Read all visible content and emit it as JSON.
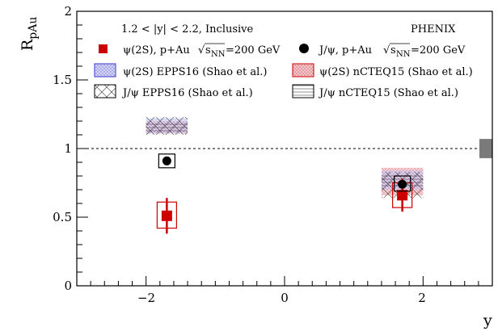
{
  "chart_data": {
    "type": "scatter",
    "ylabel": "R",
    "ylabel_sub": "pAu",
    "xlabel": "y",
    "xlim": [
      -3.0,
      3.0
    ],
    "ylim": [
      0,
      2
    ],
    "xticks": [
      "−2",
      "0",
      "2"
    ],
    "yticks": [
      "0",
      "0.5",
      "1",
      "1.5",
      "2"
    ],
    "reference_line_y": 1,
    "global_uncertainty_box": {
      "y_low": 0.93,
      "y_high": 1.07
    },
    "annotations": {
      "selection": "1.2 < |y| < 2.2, Inclusive",
      "experiment": "PHENIX"
    },
    "legend": {
      "psi2s_data": {
        "pre": "ψ(2S), p+Au ",
        "sqrt": "s",
        "sub": "NN",
        "post": "=200 GeV"
      },
      "jpsi_data": {
        "pre": "J/ψ, p+Au ",
        "sqrt": "s",
        "sub": "NN",
        "post": "=200 GeV"
      },
      "psi2s_epps16": "ψ(2S) EPPS16 (Shao et al.)",
      "psi2s_ncteq15": "ψ(2S) nCTEQ15 (Shao et al.)",
      "jpsi_epps16": "J/ψ EPPS16 (Shao et al.)",
      "jpsi_ncteq15": "J/ψ nCTEQ15 (Shao et al.)"
    },
    "series": [
      {
        "name": "ψ(2S), p+Au",
        "color": "#cc0000",
        "marker": "square",
        "points": [
          {
            "x": -1.7,
            "y": 0.51,
            "stat": 0.13,
            "sys_low": 0.42,
            "sys_high": 0.61
          },
          {
            "x": 1.7,
            "y": 0.66,
            "stat": 0.12,
            "sys_low": 0.57,
            "sys_high": 0.75
          }
        ]
      },
      {
        "name": "J/ψ, p+Au",
        "color": "#000000",
        "marker": "circle",
        "points": [
          {
            "x": -1.7,
            "y": 0.91,
            "stat": 0.01,
            "sys_low": 0.86,
            "sys_high": 0.96
          },
          {
            "x": 1.7,
            "y": 0.74,
            "stat": 0.01,
            "sys_low": 0.69,
            "sys_high": 0.8
          }
        ]
      }
    ],
    "model_bands": [
      {
        "name": "ψ(2S) nCTEQ15 (Shao et al.)",
        "pattern": "red-dots",
        "bands": [
          {
            "x_low": -2.0,
            "x_high": -1.4,
            "y_low": 1.11,
            "y_high": 1.2
          },
          {
            "x_low": 1.4,
            "x_high": 2.0,
            "y_low": 0.66,
            "y_high": 0.86
          }
        ]
      },
      {
        "name": "ψ(2S) EPPS16 (Shao et al.)",
        "pattern": "blue-dots",
        "bands": [
          {
            "x_low": -2.0,
            "x_high": -1.4,
            "y_low": 1.11,
            "y_high": 1.22
          },
          {
            "x_low": 1.4,
            "x_high": 2.0,
            "y_low": 0.7,
            "y_high": 0.84
          }
        ]
      },
      {
        "name": "J/ψ nCTEQ15 (Shao et al.)",
        "pattern": "horizontal",
        "bands": [
          {
            "x_low": -2.0,
            "x_high": -1.4,
            "y_low": 1.12,
            "y_high": 1.19
          },
          {
            "x_low": 1.4,
            "x_high": 2.0,
            "y_low": 0.71,
            "y_high": 0.82
          }
        ]
      },
      {
        "name": "J/ψ EPPS16 (Shao et al.)",
        "pattern": "crosshatch",
        "bands": [
          {
            "x_low": -2.0,
            "x_high": -1.4,
            "y_low": 1.1,
            "y_high": 1.23
          },
          {
            "x_low": 1.4,
            "x_high": 2.0,
            "y_low": 0.64,
            "y_high": 0.83
          }
        ]
      }
    ]
  }
}
